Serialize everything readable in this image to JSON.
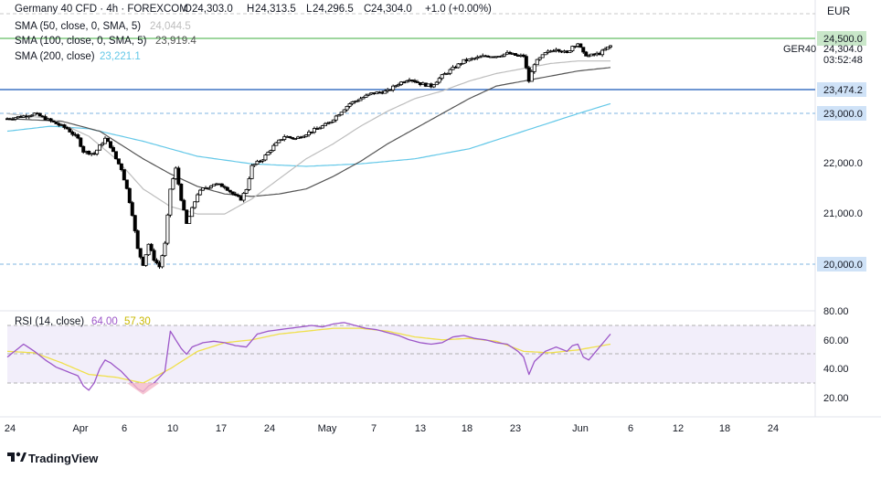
{
  "header": {
    "symbol": "Germany 40 CFD · 4h · FOREXCOM",
    "ohlc": {
      "open_label": "O",
      "open": "24,303.0",
      "high_label": "H",
      "high": "24,313.5",
      "low_label": "L",
      "low": "24,296.5",
      "close_label": "C",
      "close": "24,304.0",
      "change": "+1.0 (+0.00%)"
    },
    "currency": "EUR"
  },
  "indicators": [
    {
      "label": "SMA (50, close, 0, SMA, 5)",
      "value": "24,044.5",
      "color": "#bdbdbd"
    },
    {
      "label": "SMA (100, close, 0, SMA, 5)",
      "value": "23,919.4",
      "color": "#555555"
    },
    {
      "label": "SMA (200, close)",
      "value": "23,221.1",
      "color": "#64c8e8"
    }
  ],
  "price_axis": {
    "ticks": [
      "22,000.0",
      "21,000.0"
    ],
    "current_price": "24,304.0",
    "countdown": "03:52:48",
    "ticker": "GER40",
    "level_labels": {
      "r1": "24,500.0",
      "s1": "23,474.2",
      "s2": "23,000.0",
      "s3": "20,000.0"
    }
  },
  "rsi": {
    "label": "RSI (14, close)",
    "value": "64.00",
    "ma_value": "57.30",
    "ticks": [
      "80.00",
      "60.00",
      "40.00",
      "20.00"
    ]
  },
  "time_axis": {
    "labels": [
      "24",
      "Apr",
      "6",
      "10",
      "17",
      "24",
      "May",
      "7",
      "13",
      "18",
      "23",
      "Jun",
      "6",
      "12",
      "18",
      "24"
    ]
  },
  "footer": {
    "brand": "TradingView"
  },
  "colors": {
    "up": "#ffffff",
    "down": "#000000",
    "rsi_line": "#9c56c8",
    "rsi_ma": "#f0e04a",
    "rsi_band": "#f2eefa",
    "level_green": "#7ec87e",
    "level_blue": "#3f73c4",
    "level_dash": "#7fb4e0"
  },
  "chart_data": {
    "type": "candlestick",
    "instrument": "Germany 40 CFD",
    "timeframe": "4h",
    "y_range": [
      19800,
      24900
    ],
    "horizontal_levels": [
      24500,
      23474.2,
      23000,
      20000
    ],
    "price_path": [
      [
        0,
        22900
      ],
      [
        3,
        22950
      ],
      [
        5,
        23000
      ],
      [
        7,
        22900
      ],
      [
        9,
        22800
      ],
      [
        11,
        22700
      ],
      [
        13,
        22500
      ],
      [
        14,
        22250
      ],
      [
        16,
        22200
      ],
      [
        18,
        22500
      ],
      [
        19,
        22350
      ],
      [
        20,
        22100
      ],
      [
        21,
        21900
      ],
      [
        22,
        21500
      ],
      [
        23,
        21000
      ],
      [
        24,
        20300
      ],
      [
        25,
        20000
      ],
      [
        26,
        20400
      ],
      [
        27,
        20100
      ],
      [
        28,
        19950
      ],
      [
        29,
        20400
      ],
      [
        30,
        21500
      ],
      [
        31,
        21900
      ],
      [
        32,
        21300
      ],
      [
        33,
        20800
      ],
      [
        34,
        21100
      ],
      [
        35,
        21400
      ],
      [
        36,
        21500
      ],
      [
        38,
        21600
      ],
      [
        40,
        21550
      ],
      [
        42,
        21350
      ],
      [
        43,
        21300
      ],
      [
        44,
        21500
      ],
      [
        45,
        21950
      ],
      [
        47,
        22100
      ],
      [
        49,
        22350
      ],
      [
        51,
        22550
      ],
      [
        53,
        22500
      ],
      [
        55,
        22600
      ],
      [
        57,
        22700
      ],
      [
        59,
        22800
      ],
      [
        61,
        23000
      ],
      [
        63,
        23200
      ],
      [
        65,
        23300
      ],
      [
        67,
        23400
      ],
      [
        70,
        23450
      ],
      [
        72,
        23600
      ],
      [
        74,
        23700
      ],
      [
        76,
        23600
      ],
      [
        78,
        23550
      ],
      [
        80,
        23750
      ],
      [
        82,
        23900
      ],
      [
        84,
        24050
      ],
      [
        86,
        24100
      ],
      [
        88,
        24150
      ],
      [
        90,
        24150
      ],
      [
        92,
        24200
      ],
      [
        94,
        24150
      ],
      [
        95,
        24150
      ],
      [
        96,
        23650
      ],
      [
        97,
        24000
      ],
      [
        99,
        24200
      ],
      [
        101,
        24300
      ],
      [
        103,
        24200
      ],
      [
        104,
        24350
      ],
      [
        105,
        24400
      ],
      [
        106,
        24200
      ],
      [
        107,
        24150
      ],
      [
        109,
        24200
      ],
      [
        111,
        24350
      ]
    ],
    "sma50_path": [
      [
        0,
        23000
      ],
      [
        8,
        22900
      ],
      [
        15,
        22550
      ],
      [
        20,
        22100
      ],
      [
        25,
        21500
      ],
      [
        30,
        21150
      ],
      [
        35,
        21000
      ],
      [
        40,
        21000
      ],
      [
        45,
        21300
      ],
      [
        50,
        21700
      ],
      [
        55,
        22100
      ],
      [
        60,
        22400
      ],
      [
        65,
        22750
      ],
      [
        70,
        23050
      ],
      [
        75,
        23300
      ],
      [
        80,
        23450
      ],
      [
        85,
        23650
      ],
      [
        90,
        23800
      ],
      [
        95,
        23900
      ],
      [
        100,
        24000
      ],
      [
        105,
        24050
      ],
      [
        111,
        24050
      ]
    ],
    "sma100_path": [
      [
        0,
        22900
      ],
      [
        10,
        22850
      ],
      [
        17,
        22650
      ],
      [
        25,
        22100
      ],
      [
        30,
        21800
      ],
      [
        35,
        21550
      ],
      [
        40,
        21400
      ],
      [
        45,
        21350
      ],
      [
        50,
        21400
      ],
      [
        55,
        21500
      ],
      [
        60,
        21750
      ],
      [
        65,
        22050
      ],
      [
        70,
        22400
      ],
      [
        75,
        22700
      ],
      [
        80,
        23000
      ],
      [
        85,
        23300
      ],
      [
        90,
        23550
      ],
      [
        95,
        23650
      ],
      [
        100,
        23750
      ],
      [
        105,
        23850
      ],
      [
        111,
        23920
      ]
    ],
    "sma200_path": [
      [
        0,
        22650
      ],
      [
        8,
        22750
      ],
      [
        15,
        22700
      ],
      [
        25,
        22450
      ],
      [
        35,
        22150
      ],
      [
        45,
        22000
      ],
      [
        55,
        21950
      ],
      [
        65,
        22000
      ],
      [
        75,
        22100
      ],
      [
        85,
        22300
      ],
      [
        95,
        22650
      ],
      [
        105,
        23000
      ],
      [
        111,
        23200
      ]
    ],
    "rsi_path": [
      [
        0,
        48
      ],
      [
        3,
        57
      ],
      [
        5,
        52
      ],
      [
        7,
        46
      ],
      [
        9,
        41
      ],
      [
        11,
        38
      ],
      [
        13,
        35
      ],
      [
        14,
        28
      ],
      [
        15,
        25
      ],
      [
        16,
        30
      ],
      [
        17,
        40
      ],
      [
        18,
        46
      ],
      [
        19,
        44
      ],
      [
        20,
        41
      ],
      [
        21,
        38
      ],
      [
        22,
        34
      ],
      [
        23,
        30
      ],
      [
        24,
        26
      ],
      [
        25,
        24
      ],
      [
        26,
        28
      ],
      [
        27,
        30
      ],
      [
        28,
        34
      ],
      [
        29,
        38
      ],
      [
        30,
        66
      ],
      [
        31,
        60
      ],
      [
        32,
        54
      ],
      [
        33,
        50
      ],
      [
        34,
        55
      ],
      [
        36,
        58
      ],
      [
        38,
        59
      ],
      [
        40,
        58
      ],
      [
        42,
        56
      ],
      [
        44,
        55
      ],
      [
        46,
        64
      ],
      [
        48,
        66
      ],
      [
        50,
        67
      ],
      [
        52,
        68
      ],
      [
        54,
        69
      ],
      [
        56,
        70
      ],
      [
        58,
        69
      ],
      [
        60,
        71
      ],
      [
        62,
        72
      ],
      [
        64,
        70
      ],
      [
        66,
        68
      ],
      [
        68,
        67
      ],
      [
        70,
        65
      ],
      [
        72,
        63
      ],
      [
        74,
        60
      ],
      [
        76,
        58
      ],
      [
        78,
        57
      ],
      [
        80,
        58
      ],
      [
        82,
        62
      ],
      [
        84,
        63
      ],
      [
        86,
        61
      ],
      [
        88,
        60
      ],
      [
        90,
        58
      ],
      [
        92,
        57
      ],
      [
        94,
        52
      ],
      [
        95,
        48
      ],
      [
        96,
        36
      ],
      [
        97,
        45
      ],
      [
        99,
        52
      ],
      [
        101,
        55
      ],
      [
        103,
        52
      ],
      [
        104,
        56
      ],
      [
        105,
        57
      ],
      [
        106,
        48
      ],
      [
        107,
        46
      ],
      [
        109,
        55
      ],
      [
        111,
        64
      ]
    ],
    "rsi_ma_path": [
      [
        0,
        52
      ],
      [
        5,
        51
      ],
      [
        10,
        44
      ],
      [
        15,
        36
      ],
      [
        20,
        34
      ],
      [
        25,
        30
      ],
      [
        30,
        40
      ],
      [
        35,
        52
      ],
      [
        40,
        58
      ],
      [
        45,
        60
      ],
      [
        50,
        64
      ],
      [
        55,
        66
      ],
      [
        60,
        68
      ],
      [
        65,
        68
      ],
      [
        70,
        66
      ],
      [
        75,
        62
      ],
      [
        80,
        60
      ],
      [
        85,
        61
      ],
      [
        90,
        59
      ],
      [
        95,
        52
      ],
      [
        100,
        51
      ],
      [
        105,
        53
      ],
      [
        111,
        57
      ]
    ],
    "rsi_levels": [
      70,
      50,
      30
    ],
    "rsi_range": [
      10,
      90
    ]
  }
}
